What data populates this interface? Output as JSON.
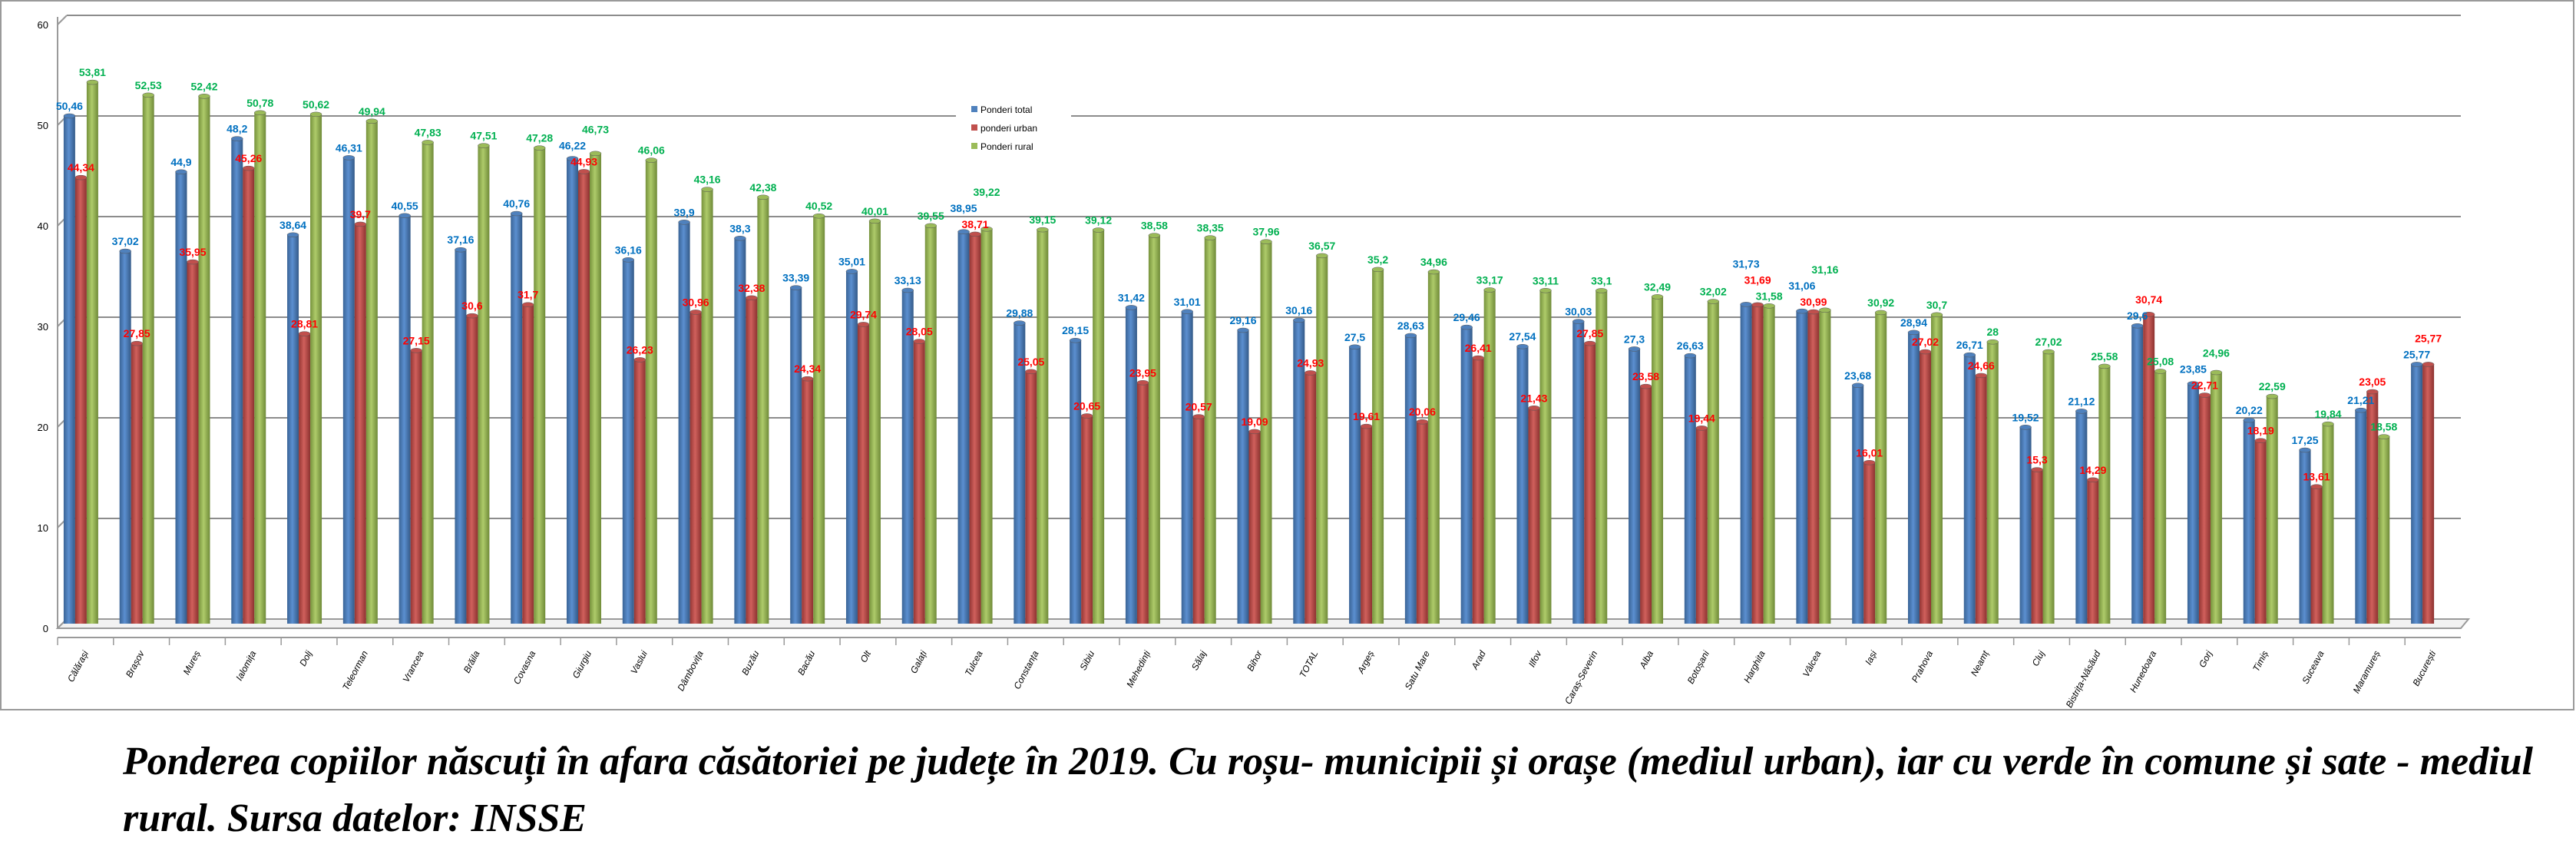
{
  "chart_data": {
    "type": "bar",
    "title": "",
    "xlabel": "",
    "ylabel": "",
    "ylim": [
      0,
      60
    ],
    "yticks": [
      0,
      10,
      20,
      30,
      40,
      50,
      60
    ],
    "grid": true,
    "legend_position": "top-center",
    "categories": [
      "Călărași",
      "Brașov",
      "Mureș",
      "Ialomița",
      "Dolj",
      "Teleorman",
      "Vrancea",
      "Brăila",
      "Covasna",
      "Giurgiu",
      "Vaslui",
      "Dâmbovița",
      "Buzău",
      "Bacău",
      "Olt",
      "Galați",
      "Tulcea",
      "Constanța",
      "Sibiu",
      "Mehedinți",
      "Sălaj",
      "Bihor",
      "TOTAL",
      "Argeș",
      "Satu Mare",
      "Arad",
      "Ilfov",
      "Caraș-Severin",
      "Alba",
      "Botoșani",
      "Harghita",
      "Vâlcea",
      "Iași",
      "Prahova",
      "Neamț",
      "Cluj",
      "Bistrița-Năsăud",
      "Hunedoara",
      "Gorj",
      "Timiș",
      "Suceava",
      "Maramureș",
      "București"
    ],
    "series": [
      {
        "name": "Ponderi total",
        "color": "#4f81bd",
        "label_color": "#0070c0",
        "values": [
          50.46,
          37.02,
          44.9,
          48.2,
          38.64,
          46.31,
          40.55,
          37.16,
          40.76,
          46.22,
          36.16,
          39.9,
          38.3,
          33.39,
          35.01,
          33.13,
          38.95,
          29.88,
          28.15,
          31.42,
          31.01,
          29.16,
          30.16,
          27.5,
          28.63,
          29.46,
          27.54,
          30.03,
          27.3,
          26.63,
          31.73,
          31.06,
          23.68,
          28.94,
          26.71,
          19.52,
          21.12,
          29.6,
          23.85,
          20.22,
          17.25,
          21.21,
          25.77
        ]
      },
      {
        "name": "ponderi urban",
        "color": "#c0504d",
        "label_color": "#ff0000",
        "values": [
          44.34,
          27.85,
          35.95,
          45.26,
          28.81,
          39.7,
          27.15,
          30.6,
          31.7,
          44.93,
          26.23,
          30.96,
          32.38,
          24.34,
          29.74,
          28.05,
          38.71,
          25.05,
          20.65,
          23.95,
          20.57,
          19.09,
          24.93,
          19.61,
          20.06,
          26.41,
          21.43,
          27.85,
          23.58,
          19.44,
          31.69,
          30.99,
          16.01,
          27.02,
          24.66,
          15.3,
          14.29,
          30.74,
          22.71,
          18.19,
          13.61,
          23.05,
          25.77
        ]
      },
      {
        "name": "Ponderi rural",
        "color": "#9bbb59",
        "label_color": "#00b050",
        "values": [
          53.81,
          52.53,
          52.42,
          50.78,
          50.62,
          49.94,
          47.83,
          47.51,
          47.28,
          46.73,
          46.06,
          43.16,
          42.38,
          40.52,
          40.01,
          39.55,
          39.22,
          39.15,
          39.12,
          38.58,
          38.35,
          37.96,
          36.57,
          35.2,
          34.96,
          33.17,
          33.11,
          33.1,
          32.49,
          32.02,
          31.58,
          31.16,
          30.92,
          30.7,
          28,
          27.02,
          25.58,
          25.08,
          24.96,
          22.59,
          19.84,
          18.58,
          null
        ]
      }
    ]
  },
  "caption": "Ponderea copiilor născuți în afara căsătoriei pe județe în 2019. Cu roșu- municipii și orașe (mediul urban), iar cu verde în comune și sate - mediul rural. Sursa datelor: INSSE"
}
